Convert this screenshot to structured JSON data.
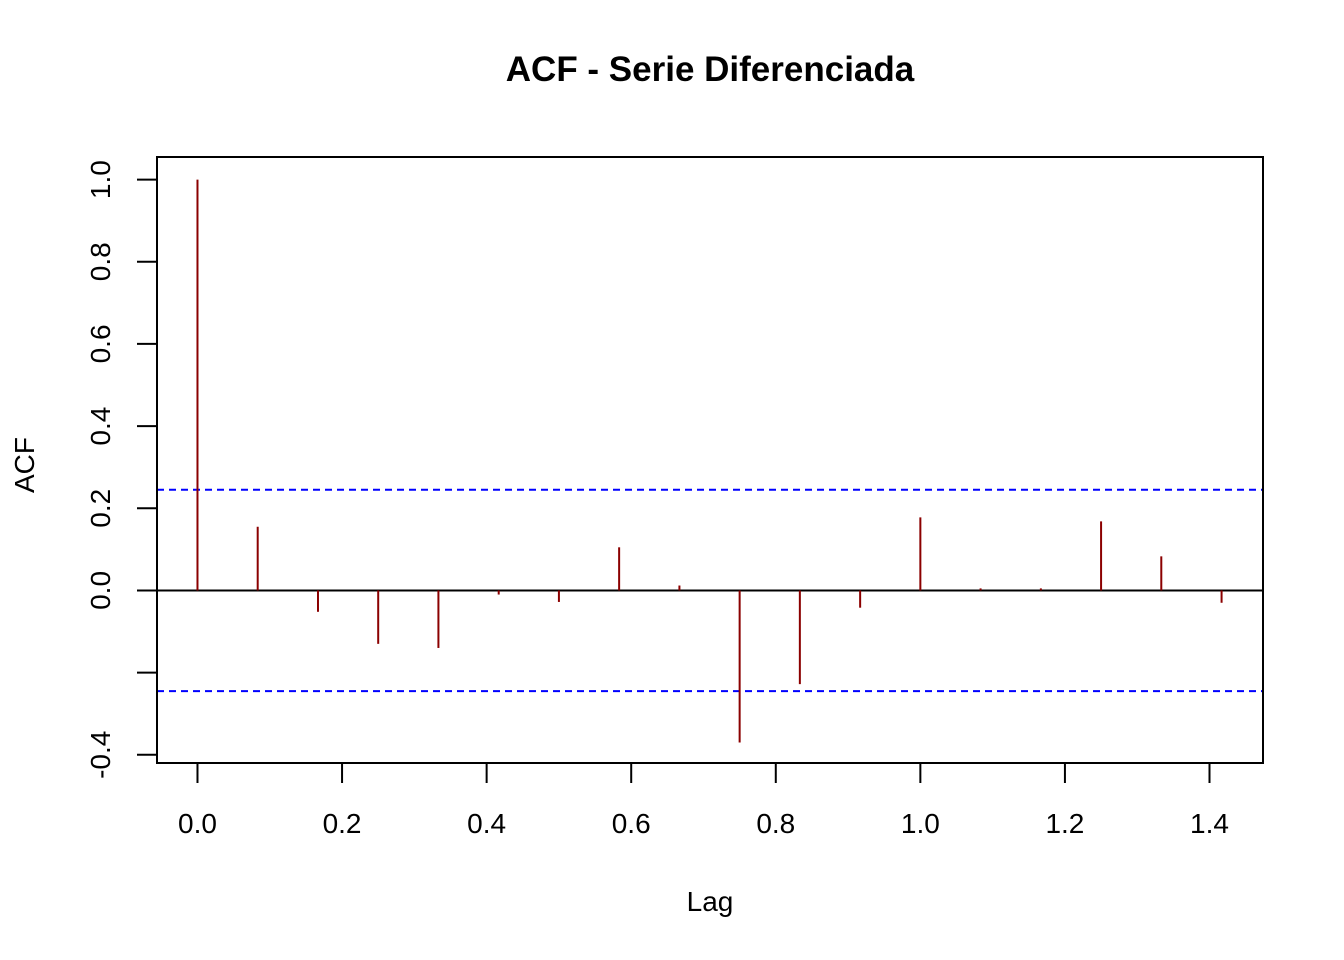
{
  "chart_data": {
    "type": "bar",
    "title": "ACF - Serie Diferenciada",
    "xlabel": "Lag",
    "ylabel": "ACF",
    "xlim": [
      -0.056,
      1.474
    ],
    "ylim": [
      -0.42,
      1.055
    ],
    "x_ticks": [
      0.0,
      0.2,
      0.4,
      0.6,
      0.8,
      1.0,
      1.2,
      1.4
    ],
    "x_tick_labels": [
      "0.0",
      "0.2",
      "0.4",
      "0.6",
      "0.8",
      "1.0",
      "1.2",
      "1.4"
    ],
    "y_ticks": [
      -0.4,
      -0.2,
      0.0,
      0.2,
      0.4,
      0.6,
      0.8,
      1.0
    ],
    "y_tick_labels": [
      "-0.4",
      "",
      "0.0",
      "0.2",
      "0.4",
      "0.6",
      "0.8",
      "1.0"
    ],
    "lags": [
      0.0,
      0.0833,
      0.1667,
      0.25,
      0.3333,
      0.4167,
      0.5,
      0.5833,
      0.6667,
      0.75,
      0.8333,
      0.9167,
      1.0,
      1.0833,
      1.1667,
      1.25,
      1.3333,
      1.4167
    ],
    "acf": [
      1.0,
      0.155,
      -0.052,
      -0.13,
      -0.14,
      -0.01,
      -0.028,
      0.105,
      0.012,
      -0.37,
      -0.228,
      -0.042,
      0.178,
      0.005,
      0.005,
      0.168,
      0.083,
      -0.03
    ],
    "confidence_bound": 0.245,
    "grid": false,
    "colors": {
      "bars": "#8b0000",
      "confidence": "#0000ff",
      "zero_line": "#000000",
      "axes": "#000000"
    }
  }
}
